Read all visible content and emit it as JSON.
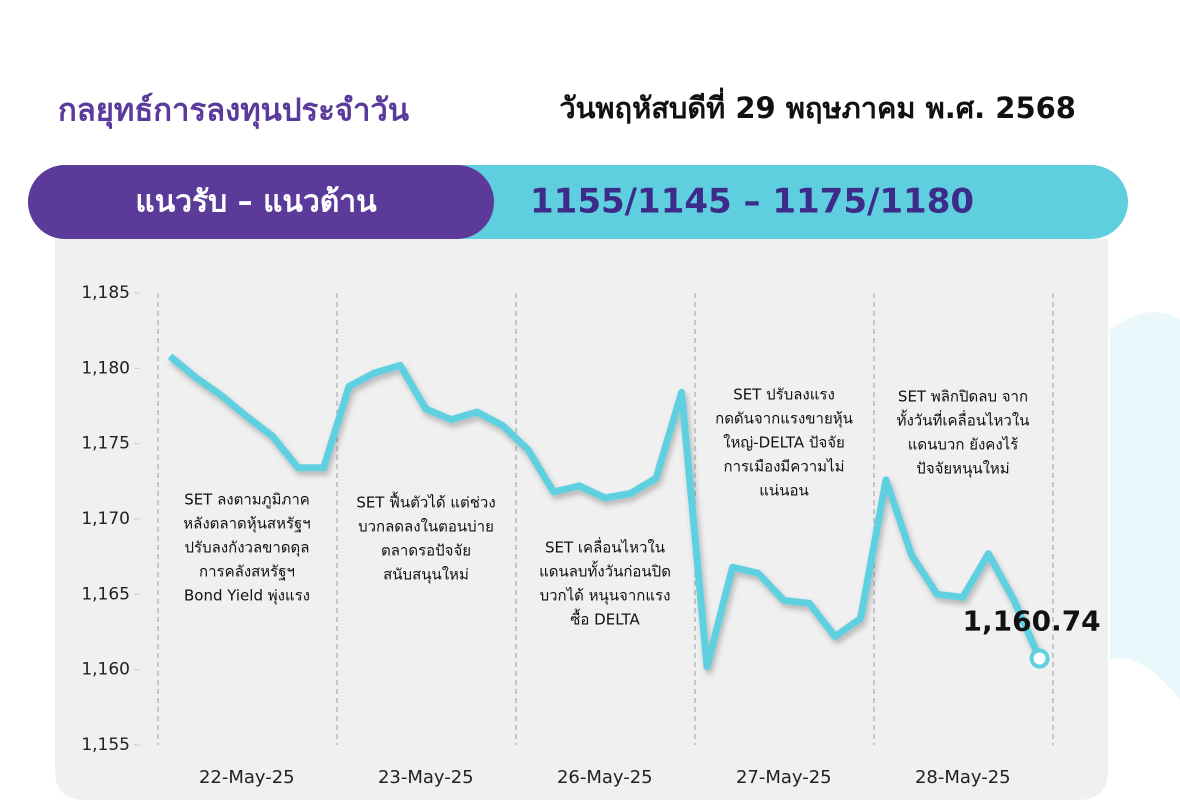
{
  "header": {
    "title": "กลยุทธ์การลงทุนประจำวัน",
    "date": "วันพฤหัสบดีที่ 29 พฤษภาคม พ.ศ. 2568",
    "range_label": "แนวรับ – แนวต้าน",
    "range_value": "1155/1145 – 1175/1180"
  },
  "chart_data": {
    "type": "line",
    "color": "#5fd0e0",
    "categories": [
      null,
      null,
      null,
      "22-May-25",
      null,
      null,
      null,
      null,
      null,
      null,
      "23-May-25",
      null,
      null,
      null,
      null,
      null,
      null,
      "26-May-25",
      null,
      null,
      null,
      null,
      null,
      null,
      "27-May-25",
      null,
      null,
      null,
      null,
      null,
      null,
      "28-May-25",
      null,
      null,
      null
    ],
    "values": [
      1180.8,
      1179.4,
      1178.2,
      1176.8,
      1175.5,
      1173.4,
      1173.4,
      1178.8,
      1179.7,
      1180.2,
      1177.3,
      1176.6,
      1177.1,
      1176.2,
      1174.6,
      1171.8,
      1172.2,
      1171.4,
      1171.7,
      1172.7,
      1178.4,
      1160.2,
      1166.8,
      1166.4,
      1164.6,
      1164.4,
      1162.2,
      1163.4,
      1172.6,
      1167.6,
      1165.0,
      1164.8,
      1167.7,
      1164.6,
      1160.74
    ],
    "value_labels": [
      null,
      null,
      null,
      null,
      null,
      null,
      null,
      null,
      null,
      null,
      null,
      null,
      null,
      null,
      null,
      null,
      null,
      null,
      null,
      null,
      null,
      null,
      null,
      null,
      null,
      null,
      null,
      null,
      null,
      null,
      null,
      null,
      null,
      null,
      "1,160.74"
    ],
    "ylim": [
      1155,
      1185
    ],
    "yticks": [
      {
        "value": 1155,
        "label": "1,155"
      },
      {
        "value": 1160,
        "label": "1,160"
      },
      {
        "value": 1165,
        "label": "1,165"
      },
      {
        "value": 1170,
        "label": "1,170"
      },
      {
        "value": 1175,
        "label": "1,175"
      },
      {
        "value": 1180,
        "label": "1,180"
      },
      {
        "value": 1185,
        "label": "1,185"
      }
    ],
    "annotations": [
      {
        "lines": [
          "SET ลงตามภูมิภาค",
          "หลังตลาดหุ้นสหรัฐฯ",
          "ปรับลงกังวลขาดดุล",
          "การคลังสหรัฐฯ",
          "Bond Yield พุ่งแรง"
        ]
      },
      {
        "lines": [
          "SET ฟื้นตัวได้ แต่ช่วง",
          "บวกลดลงในตอนบ่าย",
          "ตลาดรอปัจจัย",
          "สนับสนุนใหม่"
        ]
      },
      {
        "lines": [
          "SET เคลื่อนไหวใน",
          "แดนลบทั้งวันก่อนปิด",
          "บวกได้ หนุนจากแรง",
          "ซื้อ DELTA"
        ]
      },
      {
        "lines": [
          "SET ปรับลงแรง",
          "กดดันจากแรงขายหุ้น",
          "ใหญ่-DELTA ปัจจัย",
          "การเมืองมีความไม่",
          "แน่นอน"
        ]
      },
      {
        "lines": [
          "SET พลิกปิดลบ จาก",
          "ทั้งวันที่เคลื่อนไหวใน",
          "แดนบวก ยังคงไร้",
          "ปัจจัยหนุนใหม่"
        ]
      }
    ]
  }
}
